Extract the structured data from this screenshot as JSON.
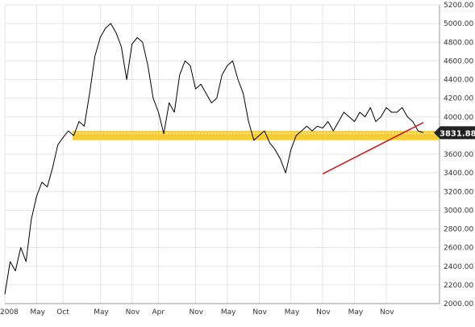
{
  "chart_data": {
    "type": "line",
    "title": "",
    "xlabel": "",
    "ylabel": "",
    "ylim": [
      2000,
      5200
    ],
    "y_ticks": [
      {
        "value": 2000,
        "label": "2000.00"
      },
      {
        "value": 2200,
        "label": "2200.00"
      },
      {
        "value": 2400,
        "label": "2400.00"
      },
      {
        "value": 2600,
        "label": "2600.00"
      },
      {
        "value": 2800,
        "label": "2800.00"
      },
      {
        "value": 3000,
        "label": "3000.00"
      },
      {
        "value": 3200,
        "label": "3200.00"
      },
      {
        "value": 3400,
        "label": "3400.00"
      },
      {
        "value": 3600,
        "label": "3600.00"
      },
      {
        "value": 3800,
        "label": "3800.00"
      },
      {
        "value": 4000,
        "label": "4000.00"
      },
      {
        "value": 4200,
        "label": "4200.00"
      },
      {
        "value": 4400,
        "label": "4400.00"
      },
      {
        "value": 4600,
        "label": "4600.00"
      },
      {
        "value": 4800,
        "label": "4800.00"
      },
      {
        "value": 5000,
        "label": "5000.00"
      },
      {
        "value": 5200,
        "label": "5200.00"
      }
    ],
    "x_ticks": [
      {
        "date": "2008-11",
        "label": "2008"
      },
      {
        "date": "2009-05",
        "label": "May"
      },
      {
        "date": "2009-10",
        "label": "Oct"
      },
      {
        "date": "2010-05",
        "label": "May"
      },
      {
        "date": "2010-11",
        "label": "Nov"
      },
      {
        "date": "2011-04",
        "label": "Apr"
      },
      {
        "date": "2011-11",
        "label": "Nov"
      },
      {
        "date": "2012-05",
        "label": "May"
      },
      {
        "date": "2012-11",
        "label": "Nov"
      },
      {
        "date": "2013-05",
        "label": "May"
      },
      {
        "date": "2013-11",
        "label": "Nov"
      },
      {
        "date": "2014-05",
        "label": "May"
      },
      {
        "date": "2014-11",
        "label": "Nov"
      }
    ],
    "grid": true,
    "current_value_label": "3831.88",
    "support_band": {
      "low": 3750,
      "high": 3850,
      "color": "#f5c518"
    },
    "trendline": {
      "start": {
        "date": "2013-11",
        "value": 3390
      },
      "end": {
        "date": "2015-06",
        "value": 3940
      },
      "color": "#cc1f1f"
    },
    "series": [
      {
        "color": "#000000",
        "x": [
          "2008-11",
          "2008-12",
          "2009-01",
          "2009-02",
          "2009-03",
          "2009-04",
          "2009-05",
          "2009-06",
          "2009-07",
          "2009-08",
          "2009-09",
          "2009-10",
          "2009-11",
          "2009-12",
          "2010-01",
          "2010-02",
          "2010-03",
          "2010-04",
          "2010-05",
          "2010-06",
          "2010-07",
          "2010-08",
          "2010-09",
          "2010-10",
          "2010-11",
          "2010-12",
          "2011-01",
          "2011-02",
          "2011-03",
          "2011-04",
          "2011-05",
          "2011-06",
          "2011-07",
          "2011-08",
          "2011-09",
          "2011-10",
          "2011-11",
          "2011-12",
          "2012-01",
          "2012-02",
          "2012-03",
          "2012-04",
          "2012-05",
          "2012-06",
          "2012-07",
          "2012-08",
          "2012-09",
          "2012-10",
          "2012-11",
          "2012-12",
          "2013-01",
          "2013-02",
          "2013-03",
          "2013-04",
          "2013-05",
          "2013-06",
          "2013-07",
          "2013-08",
          "2013-09",
          "2013-10",
          "2013-11",
          "2013-12",
          "2014-01",
          "2014-02",
          "2014-03",
          "2014-04",
          "2014-05",
          "2014-06",
          "2014-07",
          "2014-08",
          "2014-09",
          "2014-10",
          "2014-11",
          "2014-12",
          "2015-01",
          "2015-02",
          "2015-03",
          "2015-04",
          "2015-05",
          "2015-06"
        ],
        "values": [
          2100,
          2450,
          2350,
          2600,
          2450,
          2900,
          3150,
          3300,
          3250,
          3450,
          3700,
          3780,
          3850,
          3800,
          3950,
          3900,
          4250,
          4650,
          4850,
          4950,
          5000,
          4900,
          4750,
          4400,
          4780,
          4850,
          4800,
          4550,
          4200,
          4050,
          3820,
          4150,
          4050,
          4450,
          4600,
          4550,
          4300,
          4350,
          4250,
          4150,
          4200,
          4450,
          4550,
          4600,
          4400,
          4250,
          3950,
          3750,
          3800,
          3850,
          3720,
          3650,
          3550,
          3400,
          3650,
          3800,
          3850,
          3900,
          3850,
          3900,
          3880,
          3950,
          3850,
          3950,
          4050,
          4000,
          3950,
          4050,
          4000,
          4100,
          3950,
          4000,
          4100,
          4050,
          4050,
          4100,
          4000,
          3950,
          3850,
          3830
        ]
      }
    ]
  }
}
